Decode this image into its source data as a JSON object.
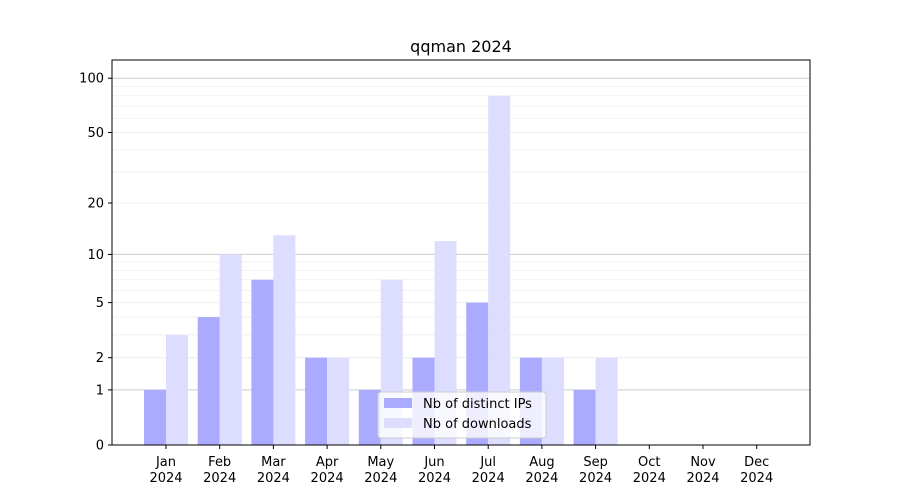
{
  "chart_data": {
    "type": "bar",
    "title": "qqman 2024",
    "xlabel": "",
    "ylabel": "",
    "yscale": "log10(1+y)",
    "ylim": [
      0,
      126
    ],
    "categories": [
      [
        "Jan",
        "2024"
      ],
      [
        "Feb",
        "2024"
      ],
      [
        "Mar",
        "2024"
      ],
      [
        "Apr",
        "2024"
      ],
      [
        "May",
        "2024"
      ],
      [
        "Jun",
        "2024"
      ],
      [
        "Jul",
        "2024"
      ],
      [
        "Aug",
        "2024"
      ],
      [
        "Sep",
        "2024"
      ],
      [
        "Oct",
        "2024"
      ],
      [
        "Nov",
        "2024"
      ],
      [
        "Dec",
        "2024"
      ]
    ],
    "series": [
      {
        "name": "Nb of distinct IPs",
        "color": "#aaaaff",
        "values": [
          1,
          4,
          7,
          2,
          1,
          2,
          5,
          2,
          1,
          0,
          0,
          0
        ]
      },
      {
        "name": "Nb of downloads",
        "color": "#ddddff",
        "values": [
          3,
          10,
          13,
          2,
          7,
          12,
          80,
          2,
          2,
          0,
          0,
          0
        ]
      }
    ],
    "yticks": [
      0,
      1,
      2,
      5,
      10,
      20,
      50,
      100
    ],
    "minor_grid": [
      3,
      4,
      6,
      7,
      8,
      9,
      30,
      40,
      60,
      70,
      80,
      90
    ],
    "legend": "lower-center",
    "grid": true
  }
}
